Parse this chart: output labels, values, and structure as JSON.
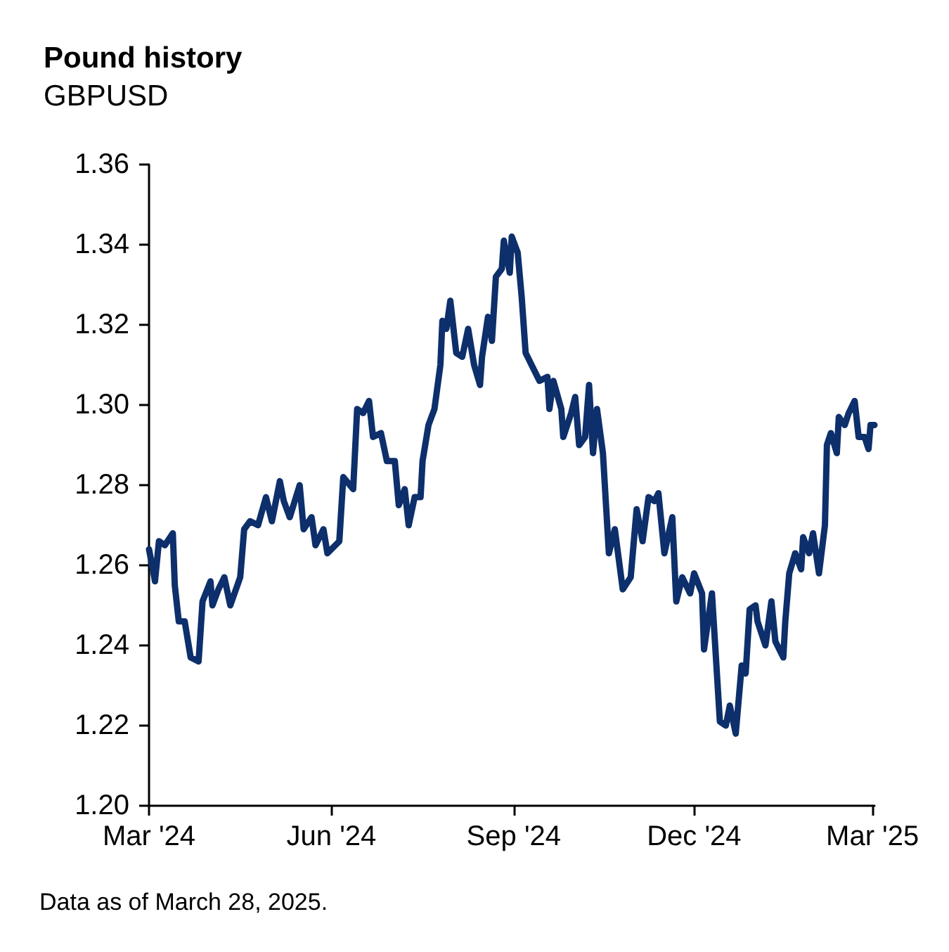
{
  "chart_data": {
    "type": "line",
    "title": "Pound history",
    "subtitle": "GBPUSD",
    "annotations": [
      "Data as of March 28, 2025."
    ],
    "x": [
      "2024-03-01",
      "2024-03-04",
      "2024-03-06",
      "2024-03-09",
      "2024-03-13",
      "2024-03-14",
      "2024-03-16",
      "2024-03-19",
      "2024-03-20",
      "2024-03-22",
      "2024-03-26",
      "2024-03-28",
      "2024-04-01",
      "2024-04-02",
      "2024-04-05",
      "2024-04-08",
      "2024-04-11",
      "2024-04-16",
      "2024-04-18",
      "2024-04-21",
      "2024-04-25",
      "2024-04-29",
      "2024-05-02",
      "2024-05-06",
      "2024-05-08",
      "2024-05-11",
      "2024-05-16",
      "2024-05-18",
      "2024-05-22",
      "2024-05-24",
      "2024-05-28",
      "2024-05-30",
      "2024-06-05",
      "2024-06-07",
      "2024-06-12",
      "2024-06-14",
      "2024-06-17",
      "2024-06-20",
      "2024-06-22",
      "2024-06-26",
      "2024-06-29",
      "2024-07-03",
      "2024-07-05",
      "2024-07-08",
      "2024-07-10",
      "2024-07-13",
      "2024-07-16",
      "2024-07-17",
      "2024-07-20",
      "2024-07-23",
      "2024-07-26",
      "2024-07-27",
      "2024-07-29",
      "2024-07-31",
      "2024-08-03",
      "2024-08-06",
      "2024-08-09",
      "2024-08-12",
      "2024-08-15",
      "2024-08-16",
      "2024-08-19",
      "2024-08-21",
      "2024-08-23",
      "2024-08-26",
      "2024-08-27",
      "2024-08-30",
      "2024-08-31",
      "2024-09-03",
      "2024-09-05",
      "2024-09-07",
      "2024-09-11",
      "2024-09-14",
      "2024-09-18",
      "2024-09-19",
      "2024-09-21",
      "2024-09-25",
      "2024-09-26",
      "2024-09-30",
      "2024-10-02",
      "2024-10-04",
      "2024-10-07",
      "2024-10-09",
      "2024-10-11",
      "2024-10-13",
      "2024-10-16",
      "2024-10-19",
      "2024-10-22",
      "2024-10-26",
      "2024-10-30",
      "2024-11-02",
      "2024-11-05",
      "2024-11-08",
      "2024-11-11",
      "2024-11-13",
      "2024-11-16",
      "2024-11-20",
      "2024-11-22",
      "2024-11-25",
      "2024-11-29",
      "2024-12-01",
      "2024-12-05",
      "2024-12-06",
      "2024-12-10",
      "2024-12-14",
      "2024-12-17",
      "2024-12-19",
      "2024-12-22",
      "2024-12-25",
      "2024-12-27",
      "2024-12-29",
      "2025-01-01",
      "2025-01-02",
      "2025-01-06",
      "2025-01-09",
      "2025-01-11",
      "2025-01-15",
      "2025-01-16",
      "2025-01-18",
      "2025-01-21",
      "2025-01-24",
      "2025-01-25",
      "2025-01-28",
      "2025-01-30",
      "2025-02-02",
      "2025-02-05",
      "2025-02-06",
      "2025-02-08",
      "2025-02-11",
      "2025-02-12",
      "2025-02-15",
      "2025-02-17",
      "2025-02-20",
      "2025-02-22",
      "2025-02-25",
      "2025-02-27",
      "2025-02-28",
      "2025-03-02"
    ],
    "series": [
      {
        "color": "#0d2f6b",
        "values": [
          1.264,
          1.256,
          1.266,
          1.265,
          1.268,
          1.255,
          1.246,
          1.246,
          1.243,
          1.237,
          1.236,
          1.251,
          1.256,
          1.25,
          1.254,
          1.257,
          1.25,
          1.257,
          1.269,
          1.271,
          1.27,
          1.277,
          1.271,
          1.281,
          1.276,
          1.272,
          1.28,
          1.269,
          1.272,
          1.265,
          1.269,
          1.263,
          1.266,
          1.282,
          1.279,
          1.299,
          1.298,
          1.301,
          1.292,
          1.293,
          1.286,
          1.286,
          1.275,
          1.279,
          1.27,
          1.277,
          1.277,
          1.286,
          1.295,
          1.299,
          1.31,
          1.321,
          1.319,
          1.326,
          1.313,
          1.312,
          1.319,
          1.31,
          1.305,
          1.312,
          1.322,
          1.316,
          1.332,
          1.334,
          1.341,
          1.333,
          1.342,
          1.338,
          1.327,
          1.313,
          1.309,
          1.306,
          1.307,
          1.299,
          1.306,
          1.299,
          1.292,
          1.298,
          1.302,
          1.29,
          1.292,
          1.305,
          1.288,
          1.299,
          1.288,
          1.263,
          1.269,
          1.254,
          1.257,
          1.274,
          1.266,
          1.277,
          1.276,
          1.278,
          1.263,
          1.272,
          1.251,
          1.257,
          1.253,
          1.258,
          1.253,
          1.239,
          1.253,
          1.221,
          1.22,
          1.225,
          1.218,
          1.235,
          1.233,
          1.249,
          1.25,
          1.246,
          1.24,
          1.251,
          1.241,
          1.237,
          1.246,
          1.258,
          1.263,
          1.259,
          1.267,
          1.263,
          1.268,
          1.258,
          1.27,
          1.29,
          1.293,
          1.288,
          1.297,
          1.295,
          1.298,
          1.301,
          1.292,
          1.292,
          1.289,
          1.295,
          1.295
        ]
      }
    ],
    "xlim": [
      "2024-03-01",
      "2025-03-02"
    ],
    "xticks": [
      {
        "value": "2024-03-01",
        "label": "Mar '24"
      },
      {
        "value": "2024-06-01",
        "label": "Jun '24"
      },
      {
        "value": "2024-09-01",
        "label": "Sep '24"
      },
      {
        "value": "2024-12-01",
        "label": "Dec '24"
      },
      {
        "value": "2025-03-01",
        "label": "Mar '25"
      }
    ],
    "ylim": [
      1.2,
      1.36
    ],
    "yticks": [
      {
        "value": 1.2,
        "label": "1.20"
      },
      {
        "value": 1.22,
        "label": "1.22"
      },
      {
        "value": 1.24,
        "label": "1.24"
      },
      {
        "value": 1.26,
        "label": "1.26"
      },
      {
        "value": 1.28,
        "label": "1.28"
      },
      {
        "value": 1.3,
        "label": "1.30"
      },
      {
        "value": 1.32,
        "label": "1.32"
      },
      {
        "value": 1.34,
        "label": "1.34"
      },
      {
        "value": 1.36,
        "label": "1.36"
      }
    ],
    "grid": false,
    "marker": "none",
    "line_style": "solid"
  }
}
